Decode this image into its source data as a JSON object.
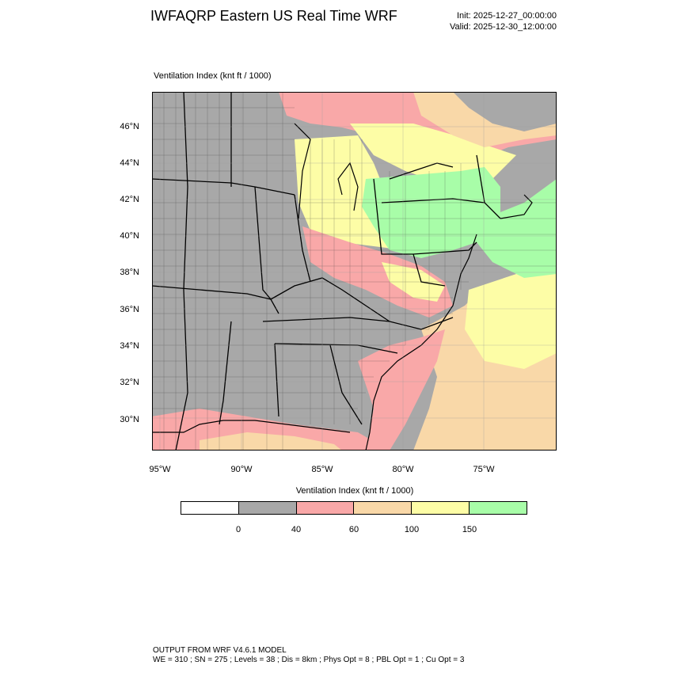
{
  "title": "IWFAQRP Eastern US Real Time WRF",
  "init": "Init: 2025-12-27_00:00:00",
  "valid": "Valid: 2025-12-30_12:00:00",
  "map": {
    "subtitle": "Ventilation Index   (knt ft / 1000)",
    "lat_labels": [
      "46°N",
      "44°N",
      "42°N",
      "40°N",
      "38°N",
      "36°N",
      "34°N",
      "32°N",
      "30°N"
    ],
    "lon_labels": [
      "95°W",
      "90°W",
      "85°W",
      "80°W",
      "75°W"
    ]
  },
  "legend": {
    "title": "Ventilation Index  (knt ft / 1000)",
    "colors": [
      "#ffffff",
      "#a8a8a8",
      "#f9a8a8",
      "#f9d8a8",
      "#fdfda6",
      "#a8fda8"
    ],
    "thresholds": [
      "0",
      "40",
      "60",
      "100",
      "150"
    ]
  },
  "footer": {
    "line1": "OUTPUT FROM WRF V4.6.1 MODEL",
    "line2": "WE = 310 ; SN = 275 ; Levels = 38 ; Dis = 8km ; Phys Opt = 8 ; PBL Opt = 1 ; Cu Opt = 3"
  }
}
